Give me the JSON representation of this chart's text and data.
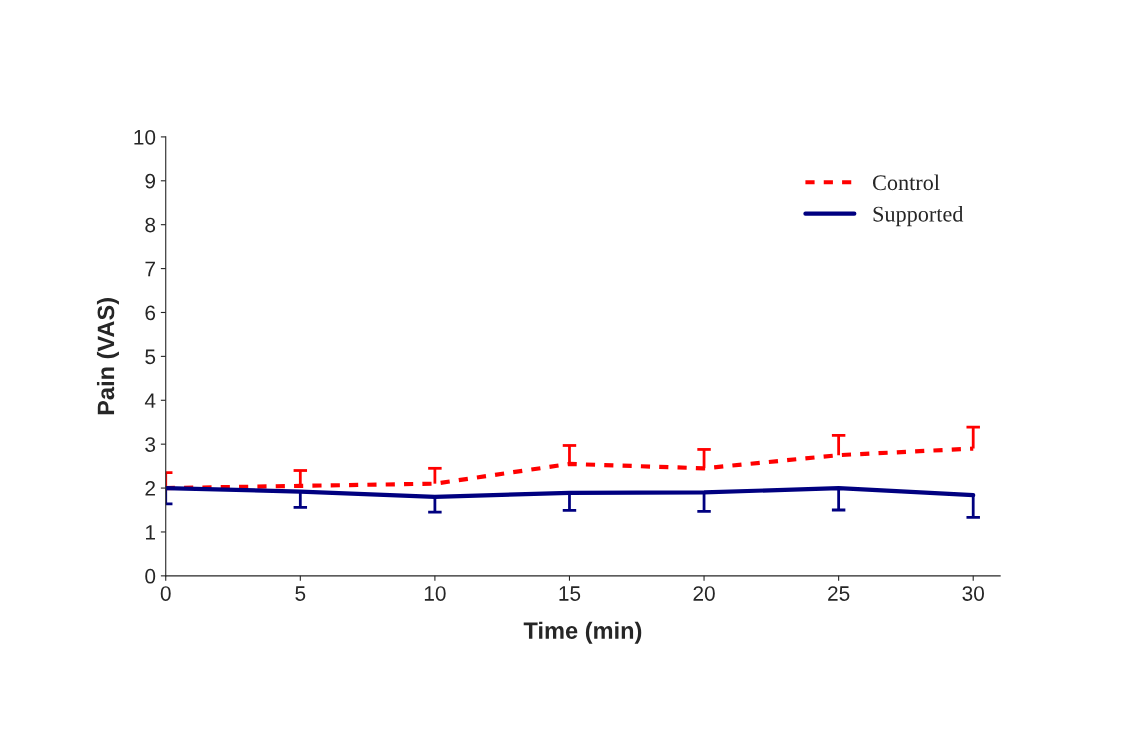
{
  "chart_data": {
    "type": "line",
    "xlabel": "Time (min)",
    "ylabel": "Pain (VAS)",
    "x": [
      0,
      5,
      10,
      15,
      20,
      25,
      30
    ],
    "series": [
      {
        "name": "Control",
        "color": "#ff0000",
        "line_style": "dashed",
        "values": [
          2.0,
          2.05,
          2.1,
          2.55,
          2.45,
          2.75,
          2.9
        ],
        "errors": [
          [
            2.0,
            2.35
          ],
          [
            2.05,
            2.4
          ],
          [
            2.1,
            2.45
          ],
          [
            2.55,
            2.97
          ],
          [
            2.45,
            2.88
          ],
          [
            2.75,
            3.2
          ],
          [
            2.9,
            3.39
          ]
        ]
      },
      {
        "name": "Supported",
        "color": "#000080",
        "line_style": "solid",
        "values": [
          2.0,
          1.92,
          1.8,
          1.89,
          1.9,
          2.0,
          1.84
        ],
        "errors": [
          [
            1.64,
            2.0
          ],
          [
            1.56,
            1.92
          ],
          [
            1.45,
            1.8
          ],
          [
            1.49,
            1.89
          ],
          [
            1.47,
            1.9
          ],
          [
            1.5,
            2.0
          ],
          [
            1.33,
            1.84
          ]
        ]
      }
    ],
    "xlim": [
      0,
      31
    ],
    "xticks": [
      0,
      5,
      10,
      15,
      20,
      25,
      30
    ],
    "ylim": [
      0,
      10
    ],
    "yticks": [
      0,
      1,
      2,
      3,
      4,
      5,
      6,
      7,
      8,
      9,
      10
    ],
    "grid": false,
    "legend": "top right",
    "marker": "none"
  }
}
